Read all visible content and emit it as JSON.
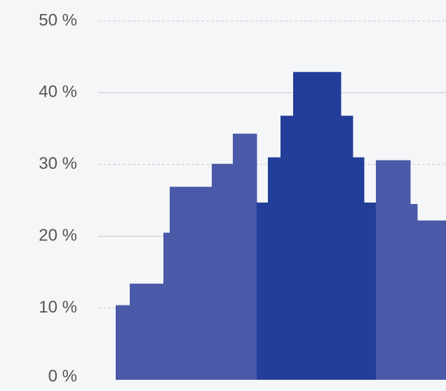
{
  "chart_data": {
    "type": "bar",
    "categories": [
      null,
      null,
      null,
      null,
      null,
      null,
      null,
      null,
      null,
      null,
      null,
      null,
      null,
      null,
      null,
      null
    ],
    "values": [
      10.4,
      13.4,
      20.5,
      26.9,
      30.1,
      34.3,
      24.7,
      31,
      36.8,
      42.9,
      36.8,
      31,
      24.7,
      30.6,
      24.5,
      22.2
    ],
    "colors": [
      "#4a5aa8",
      "#4a5aa8",
      "#4a5aa8",
      "#4a5aa8",
      "#4a5aa8",
      "#4a5aa8",
      "#233e98",
      "#233e98",
      "#233e98",
      "#233e98",
      "#233e98",
      "#233e98",
      "#233e98",
      "#4a5aa8",
      "#4a5aa8",
      "#4a5aa8"
    ],
    "ylim": [
      0,
      50
    ],
    "yticks": [
      {
        "value": 0,
        "label": "0 %"
      },
      {
        "value": 10,
        "label": "10 %"
      },
      {
        "value": 20,
        "label": "20 %"
      },
      {
        "value": 30,
        "label": "30 %"
      },
      {
        "value": 40,
        "label": "40 %"
      },
      {
        "value": 50,
        "label": "50 %"
      }
    ],
    "grid": true
  }
}
